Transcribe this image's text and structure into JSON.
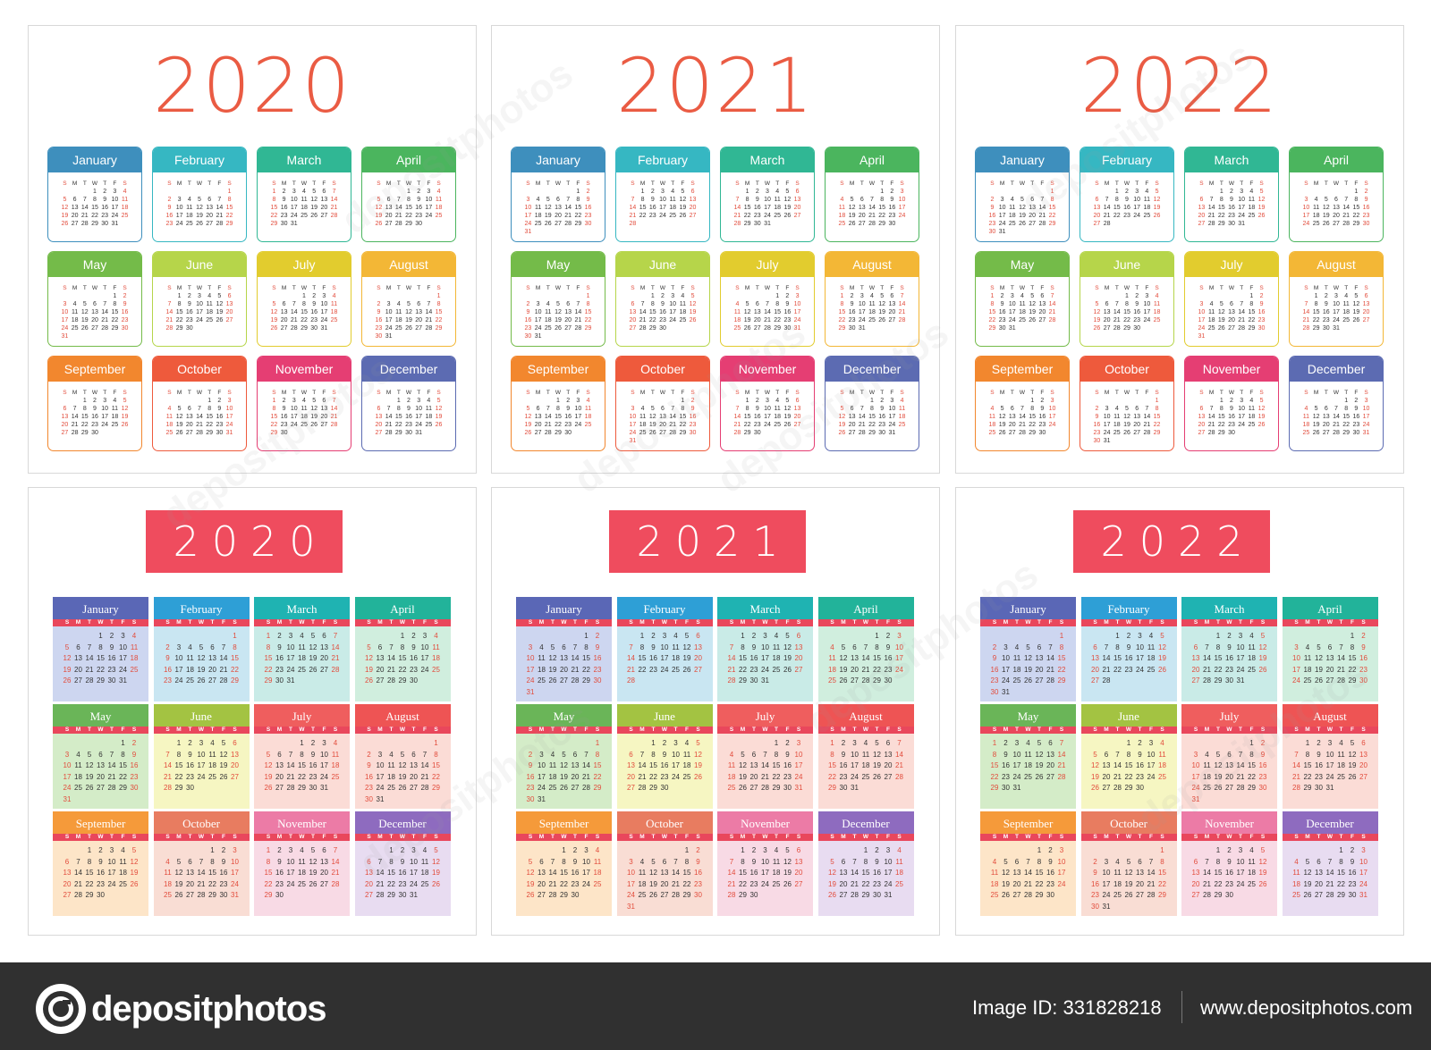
{
  "years": [
    "2020",
    "2021",
    "2022"
  ],
  "month_names": [
    "January",
    "February",
    "March",
    "April",
    "May",
    "June",
    "July",
    "August",
    "September",
    "October",
    "November",
    "December"
  ],
  "weekday_letters": [
    "S",
    "M",
    "T",
    "W",
    "T",
    "F",
    "S"
  ],
  "style_a_header_colors": [
    "#3e8fbd",
    "#36b7c2",
    "#30b794",
    "#4bb55e",
    "#74bb49",
    "#b6d54a",
    "#e2cc2e",
    "#f3b736",
    "#f2872e",
    "#ee5a3c",
    "#e53e73",
    "#5c6bb2"
  ],
  "style_b_header_colors": [
    "#5a67b6",
    "#2e9fd6",
    "#1fb3b2",
    "#22b39a",
    "#6ab558",
    "#a3c342",
    "#ef5e5e",
    "#ee5454",
    "#f59a3a",
    "#e87c60",
    "#ec7ba6",
    "#8e6bbf"
  ],
  "style_b_body_colors": [
    "#cdd6f0",
    "#c9e6f2",
    "#c9ebe7",
    "#d0eede",
    "#d4ecc8",
    "#f6f6c2",
    "#fbdcd6",
    "#fbdcd6",
    "#fde5c8",
    "#f9ddd4",
    "#f8dae5",
    "#e8dcf1"
  ],
  "month_start_weekdays": {
    "2020": [
      3,
      6,
      0,
      3,
      5,
      1,
      3,
      6,
      2,
      4,
      0,
      2
    ],
    "2021": [
      5,
      1,
      1,
      4,
      6,
      2,
      4,
      0,
      3,
      5,
      1,
      3
    ],
    "2022": [
      6,
      2,
      2,
      5,
      0,
      3,
      5,
      1,
      4,
      6,
      2,
      4
    ]
  },
  "month_days": {
    "2020": [
      31,
      29,
      31,
      30,
      31,
      30,
      31,
      31,
      30,
      31,
      30,
      31
    ],
    "2021": [
      31,
      28,
      31,
      30,
      31,
      30,
      31,
      31,
      30,
      31,
      30,
      31
    ],
    "2022": [
      31,
      28,
      31,
      30,
      31,
      30,
      31,
      31,
      30,
      31,
      30,
      31
    ]
  },
  "footer": {
    "brand": "depositphotos",
    "image_id": "Image ID: 331828218",
    "site": "www.depositphotos.com"
  },
  "watermark": "depositphotos"
}
